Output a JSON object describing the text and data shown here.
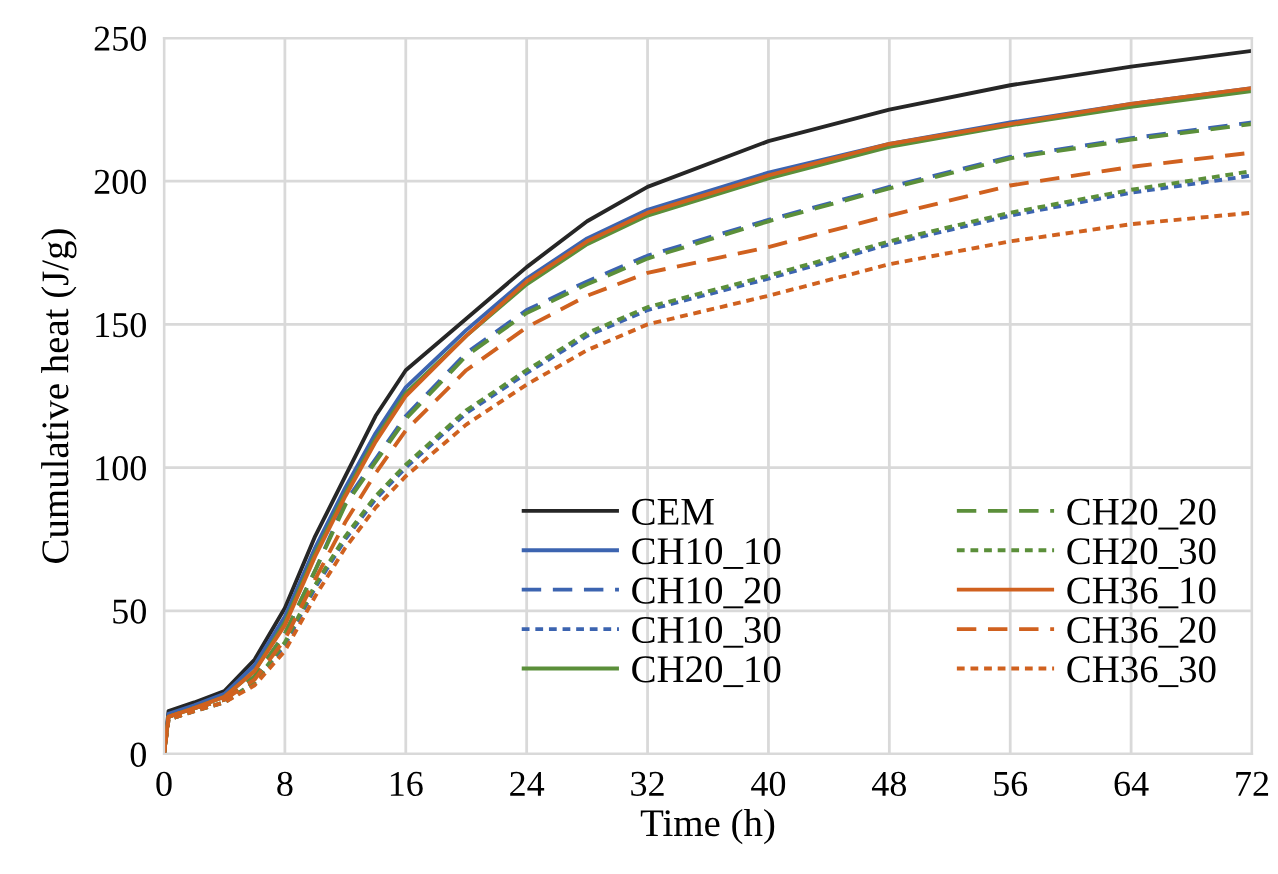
{
  "chart_data": {
    "type": "line",
    "xlabel": "Time (h)",
    "ylabel": "Cumulative heat (J/g)",
    "x": [
      0,
      0.3,
      2,
      4,
      6,
      8,
      10,
      12,
      14,
      16,
      20,
      24,
      28,
      32,
      40,
      48,
      56,
      64,
      72
    ],
    "xlim": [
      0,
      72
    ],
    "xticks": [
      0,
      8,
      16,
      24,
      32,
      40,
      48,
      56,
      64,
      72
    ],
    "ylim": [
      0,
      250
    ],
    "yticks": [
      0,
      50,
      100,
      150,
      200,
      250
    ],
    "grid": true,
    "legend": "bottom right",
    "marker": "none",
    "series": [
      {
        "name": "CEM",
        "color": "#262626",
        "line_style": "solid",
        "values": [
          0,
          15,
          18,
          22,
          33,
          51,
          76,
          97,
          118,
          134,
          152,
          170,
          186,
          198,
          214,
          225,
          233.5,
          240,
          245.5
        ]
      },
      {
        "name": "CH10_10",
        "color": "#3c64b0",
        "line_style": "solid",
        "values": [
          0,
          14,
          17,
          21,
          31,
          48,
          72,
          93,
          112,
          128,
          148,
          166,
          180,
          190,
          203,
          213,
          220.5,
          227,
          232.5
        ]
      },
      {
        "name": "CH10_20",
        "color": "#3c64b0",
        "line_style": "dashed",
        "values": [
          0,
          13,
          16,
          19,
          27,
          42,
          64,
          88,
          103,
          118,
          140,
          155,
          165,
          174,
          186.5,
          198,
          208.5,
          215,
          220.5
        ]
      },
      {
        "name": "CH10_30",
        "color": "#3c64b0",
        "line_style": "dotted",
        "values": [
          0,
          12,
          15,
          18,
          25,
          38,
          58,
          75,
          89,
          100,
          119,
          133,
          146,
          155,
          166,
          178,
          188,
          196,
          202
        ]
      },
      {
        "name": "CH20_10",
        "color": "#5b8f3a",
        "line_style": "solid",
        "values": [
          0,
          13,
          16,
          20,
          29,
          46,
          70,
          91,
          110,
          126,
          146,
          164,
          178,
          188,
          201,
          212,
          219.5,
          226,
          231.5
        ]
      },
      {
        "name": "CH20_20",
        "color": "#5b8f3a",
        "line_style": "dashed",
        "values": [
          0,
          13,
          16,
          19,
          27,
          42,
          64,
          87,
          102,
          117,
          139,
          154,
          164,
          173,
          186,
          197.5,
          208,
          214.5,
          220
        ]
      },
      {
        "name": "CH20_30",
        "color": "#5b8f3a",
        "line_style": "dotted",
        "values": [
          0,
          12,
          15,
          18,
          25,
          39,
          59,
          76,
          90,
          101,
          120,
          134,
          147,
          156,
          167,
          179,
          189,
          197,
          203.5
        ]
      },
      {
        "name": "CH36_10",
        "color": "#d0611f",
        "line_style": "solid",
        "values": [
          0,
          13,
          16,
          20,
          29,
          45,
          69,
          90,
          109,
          125,
          146,
          165,
          179,
          189,
          202,
          213,
          220,
          227,
          232.5
        ]
      },
      {
        "name": "CH36_20",
        "color": "#d0611f",
        "line_style": "dashed",
        "values": [
          0,
          13,
          16,
          19,
          26,
          40,
          61,
          81,
          98,
          113,
          134,
          149,
          160,
          168,
          177,
          188,
          198.5,
          205,
          210
        ]
      },
      {
        "name": "CH36_30",
        "color": "#d0611f",
        "line_style": "dotted",
        "values": [
          0,
          12,
          15,
          18,
          24,
          36,
          55,
          72,
          86,
          97,
          115,
          129,
          141,
          150,
          160,
          171,
          179,
          185,
          189
        ]
      }
    ]
  }
}
